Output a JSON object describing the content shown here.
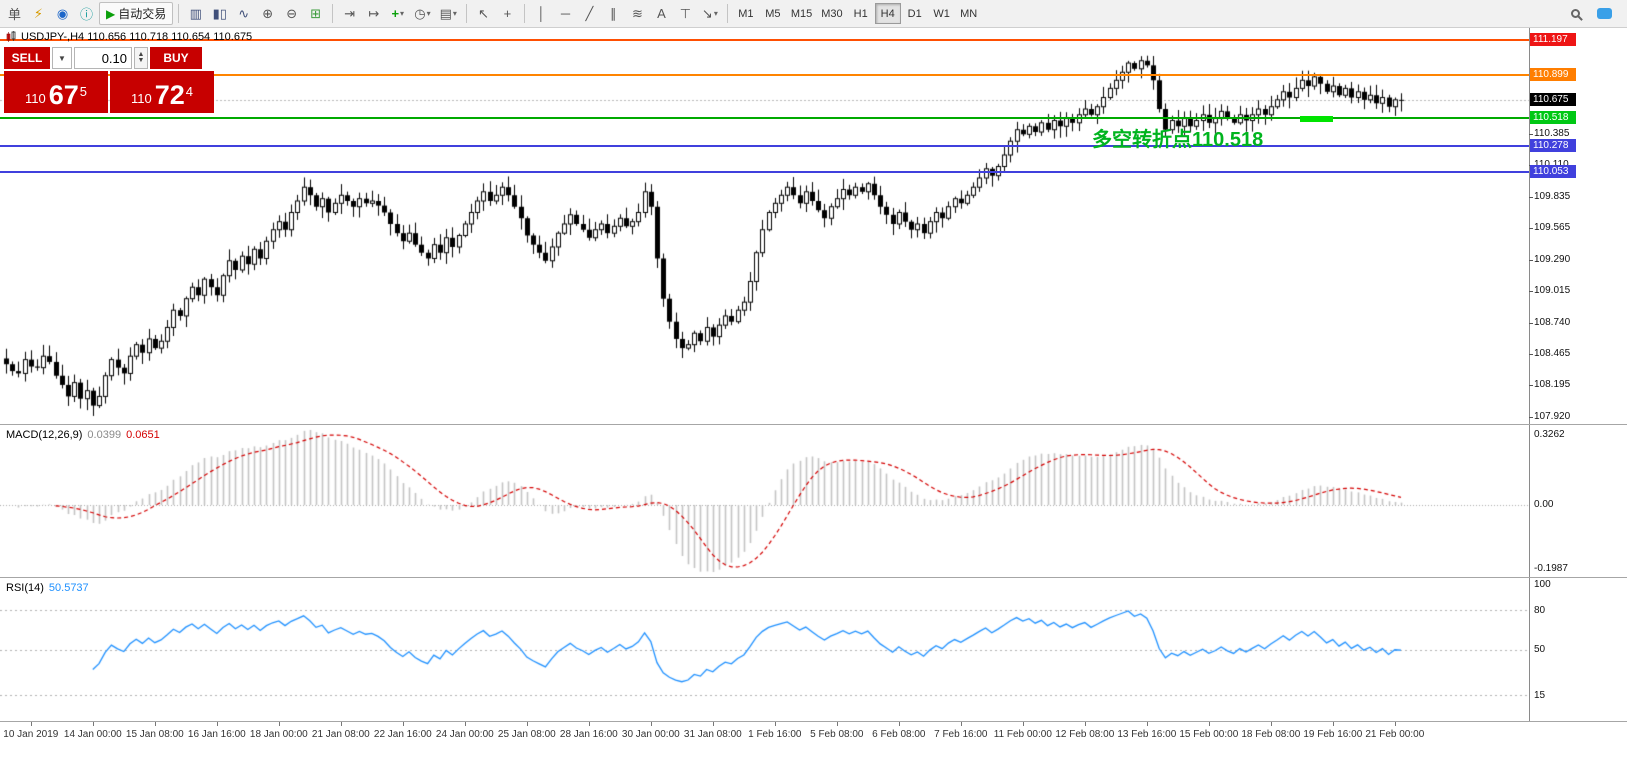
{
  "toolbar": {
    "new_order": "单",
    "autotrade_label": "自动交易",
    "icons": {
      "new_chart": "⚡",
      "market_watch": "◉",
      "data_window": "ⓘ",
      "play": "▶",
      "bars": "▥",
      "candles": "▮▯",
      "line_chart": "∿",
      "zoom_in": "⊕",
      "zoom_out": "⊖",
      "tile_windows": "⊞",
      "auto_scroll": "⇥",
      "chart_shift": "↦",
      "indicators": "+",
      "periods": "◷",
      "templates": "▤",
      "cursor": "↖",
      "crosshair": "+",
      "vertical_line": "│",
      "horizontal_line": "─",
      "trendline": "╱",
      "channel": "∥",
      "fibonacci": "≋",
      "text": "A",
      "label": "⊤",
      "arrows": "↘",
      "dropdown": "▾"
    },
    "timeframes": [
      "M1",
      "M5",
      "M15",
      "M30",
      "H1",
      "H4",
      "D1",
      "W1",
      "MN"
    ],
    "active_timeframe": "H4"
  },
  "chart_header": {
    "title": "USDJPY-,H4 110.656 110.718 110.654 110.675"
  },
  "trade_panel": {
    "sell": "SELL",
    "buy": "BUY",
    "volume": "0.10",
    "bid": {
      "big": "110",
      "pips": "67",
      "sup": "5"
    },
    "ask": {
      "big": "110",
      "pips": "72",
      "sup": "4"
    }
  },
  "annotation": {
    "text": "多空转折点110.518",
    "color": "#00b41e"
  },
  "objects": {
    "highlight_segment_color": "#00e400"
  },
  "hlines": [
    {
      "price": 111.197,
      "label": "111.197",
      "line_color": "#ff4f02",
      "label_bg": "#ee1515"
    },
    {
      "price": 110.899,
      "label": "110.899",
      "line_color": "#ff8400",
      "label_bg": "#ff7e00"
    },
    {
      "price": 110.518,
      "label": "110.518",
      "line_color": "#00aa00",
      "label_bg": "#00c814"
    },
    {
      "price": 110.278,
      "label": "110.278",
      "line_color": "#4040dd",
      "label_bg": "#4040dd"
    },
    {
      "price": 110.053,
      "label": "110.053",
      "line_color": "#4040dd",
      "label_bg": "#4040dd"
    }
  ],
  "bid_line": {
    "price": 110.675,
    "label": "110.675",
    "label_bg": "#000000"
  },
  "price_scale_ticks": [
    {
      "label": "110.385",
      "value": 110.385
    },
    {
      "label": "110.110",
      "value": 110.11
    },
    {
      "label": "109.835",
      "value": 109.835
    },
    {
      "label": "109.565",
      "value": 109.565
    },
    {
      "label": "109.290",
      "value": 109.29
    },
    {
      "label": "109.015",
      "value": 109.015
    },
    {
      "label": "108.740",
      "value": 108.74
    },
    {
      "label": "108.465",
      "value": 108.465
    },
    {
      "label": "108.195",
      "value": 108.195
    },
    {
      "label": "107.920",
      "value": 107.92
    }
  ],
  "macd": {
    "name": "MACD(12,26,9)",
    "value_main": "0.0399",
    "value_signal": "0.0651",
    "params": {
      "fast": 12,
      "slow": 26,
      "signal": 9
    },
    "scale": {
      "top": "0.3262",
      "zero": "0.00",
      "bottom": "-0.1987"
    },
    "hist_color": "#c4c4c4",
    "signal_color": "#d40000"
  },
  "rsi": {
    "name": "RSI(14)",
    "value": "50.5737",
    "period": 14,
    "levels": [
      80,
      50,
      15
    ],
    "scale": [
      "100",
      "80",
      "50",
      "15"
    ],
    "line_color": "#1e90ff"
  },
  "time_axis": [
    "10 Jan 2019",
    "14 Jan 00:00",
    "15 Jan 08:00",
    "16 Jan 16:00",
    "18 Jan 00:00",
    "21 Jan 08:00",
    "22 Jan 16:00",
    "24 Jan 00:00",
    "25 Jan 08:00",
    "28 Jan 16:00",
    "30 Jan 00:00",
    "31 Jan 08:00",
    "1 Feb 16:00",
    "5 Feb 08:00",
    "6 Feb 08:00",
    "7 Feb 16:00",
    "11 Feb 00:00",
    "12 Feb 08:00",
    "13 Feb 16:00",
    "15 Feb 00:00",
    "18 Feb 08:00",
    "19 Feb 16:00",
    "21 Feb 00:00"
  ],
  "chart_data": {
    "type": "candlestick",
    "symbol": "USDJPY-",
    "timeframe": "H4",
    "title": "USDJPY-,H4",
    "last": {
      "open": 110.656,
      "high": 110.718,
      "low": 110.654,
      "close": 110.675
    },
    "price_range": [
      107.86,
      111.305
    ],
    "closes": [
      108.38,
      108.32,
      108.3,
      108.42,
      108.36,
      108.35,
      108.45,
      108.4,
      108.28,
      108.2,
      108.1,
      108.22,
      108.08,
      108.15,
      108.02,
      108.1,
      108.28,
      108.42,
      108.35,
      108.3,
      108.45,
      108.55,
      108.48,
      108.6,
      108.52,
      108.58,
      108.7,
      108.85,
      108.8,
      108.95,
      109.05,
      108.98,
      109.12,
      109.05,
      108.98,
      109.15,
      109.28,
      109.2,
      109.32,
      109.25,
      109.38,
      109.3,
      109.45,
      109.55,
      109.62,
      109.55,
      109.7,
      109.8,
      109.92,
      109.85,
      109.75,
      109.82,
      109.7,
      109.78,
      109.85,
      109.8,
      109.75,
      109.82,
      109.78,
      109.8,
      109.76,
      109.7,
      109.6,
      109.52,
      109.45,
      109.52,
      109.42,
      109.35,
      109.3,
      109.42,
      109.35,
      109.48,
      109.4,
      109.5,
      109.6,
      109.7,
      109.8,
      109.88,
      109.8,
      109.85,
      109.92,
      109.85,
      109.75,
      109.65,
      109.5,
      109.42,
      109.35,
      109.28,
      109.4,
      109.52,
      109.6,
      109.68,
      109.6,
      109.55,
      109.48,
      109.55,
      109.6,
      109.52,
      109.58,
      109.65,
      109.58,
      109.62,
      109.7,
      109.88,
      109.75,
      109.3,
      108.95,
      108.75,
      108.6,
      108.52,
      108.55,
      108.65,
      108.58,
      108.7,
      108.62,
      108.72,
      108.8,
      108.75,
      108.85,
      108.92,
      109.1,
      109.35,
      109.55,
      109.7,
      109.78,
      109.85,
      109.92,
      109.85,
      109.78,
      109.88,
      109.8,
      109.72,
      109.65,
      109.75,
      109.82,
      109.9,
      109.85,
      109.92,
      109.88,
      109.95,
      109.85,
      109.75,
      109.68,
      109.6,
      109.7,
      109.62,
      109.55,
      109.6,
      109.52,
      109.62,
      109.7,
      109.65,
      109.75,
      109.82,
      109.78,
      109.85,
      109.92,
      110.0,
      110.08,
      110.02,
      110.1,
      110.2,
      110.32,
      110.42,
      110.38,
      110.45,
      110.4,
      110.48,
      110.42,
      110.5,
      110.45,
      110.52,
      110.48,
      110.55,
      110.6,
      110.55,
      110.62,
      110.7,
      110.78,
      110.85,
      110.92,
      111.0,
      110.95,
      111.02,
      110.98,
      110.85,
      110.6,
      110.42,
      110.5,
      110.45,
      110.52,
      110.45,
      110.5,
      110.55,
      110.48,
      110.52,
      110.58,
      110.52,
      110.48,
      110.55,
      110.5,
      110.55,
      110.6,
      110.55,
      110.62,
      110.68,
      110.75,
      110.7,
      110.78,
      110.85,
      110.8,
      110.88,
      110.82,
      110.75,
      110.8,
      110.72,
      110.78,
      110.7,
      110.75,
      110.68,
      110.72,
      110.65,
      110.7,
      110.62,
      110.68,
      110.675
    ],
    "wick_overrides": {
      "14": {
        "low": 107.93
      },
      "48": {
        "high": 110.005
      },
      "103": {
        "high": 109.96
      },
      "183": {
        "high": 111.06
      }
    }
  }
}
